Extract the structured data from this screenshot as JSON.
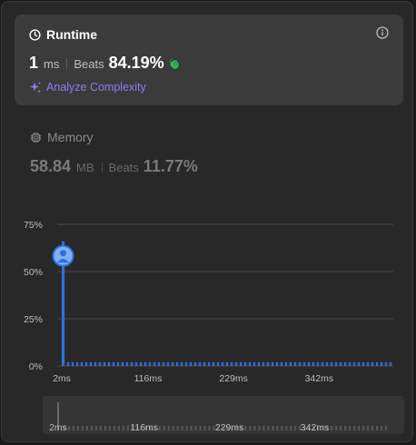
{
  "runtime": {
    "title": "Runtime",
    "value": "1",
    "unit": "ms",
    "beats_label": "Beats",
    "beats_pct": "84.19%",
    "analyze_label": "Analyze Complexity",
    "icon": "clock-icon",
    "celebrate_icon": "clap-icon"
  },
  "memory": {
    "title": "Memory",
    "value": "58.84",
    "unit": "MB",
    "beats_label": "Beats",
    "beats_pct": "11.77%",
    "icon": "chip-icon"
  },
  "colors": {
    "accent_purple": "#8d7cf3",
    "bar_blue": "#2f6fe0",
    "clap_green": "#2cbb5d"
  },
  "chart_data": {
    "type": "bar",
    "y_ticks": [
      "75%",
      "50%",
      "25%",
      "0%"
    ],
    "ylim": [
      0,
      75
    ],
    "x_ticks": [
      "2ms",
      "116ms",
      "229ms",
      "342ms"
    ],
    "x_tick_values": [
      2,
      116,
      229,
      342
    ],
    "xlim": [
      2,
      440
    ],
    "values": [
      66,
      2
    ],
    "highlight_x": 2,
    "highlight_value": 66,
    "tail_bar_count": 72,
    "tail_value": 2,
    "grid": true,
    "scrubber_ticks": [
      "2ms",
      "116ms",
      "229ms",
      "342ms"
    ]
  }
}
